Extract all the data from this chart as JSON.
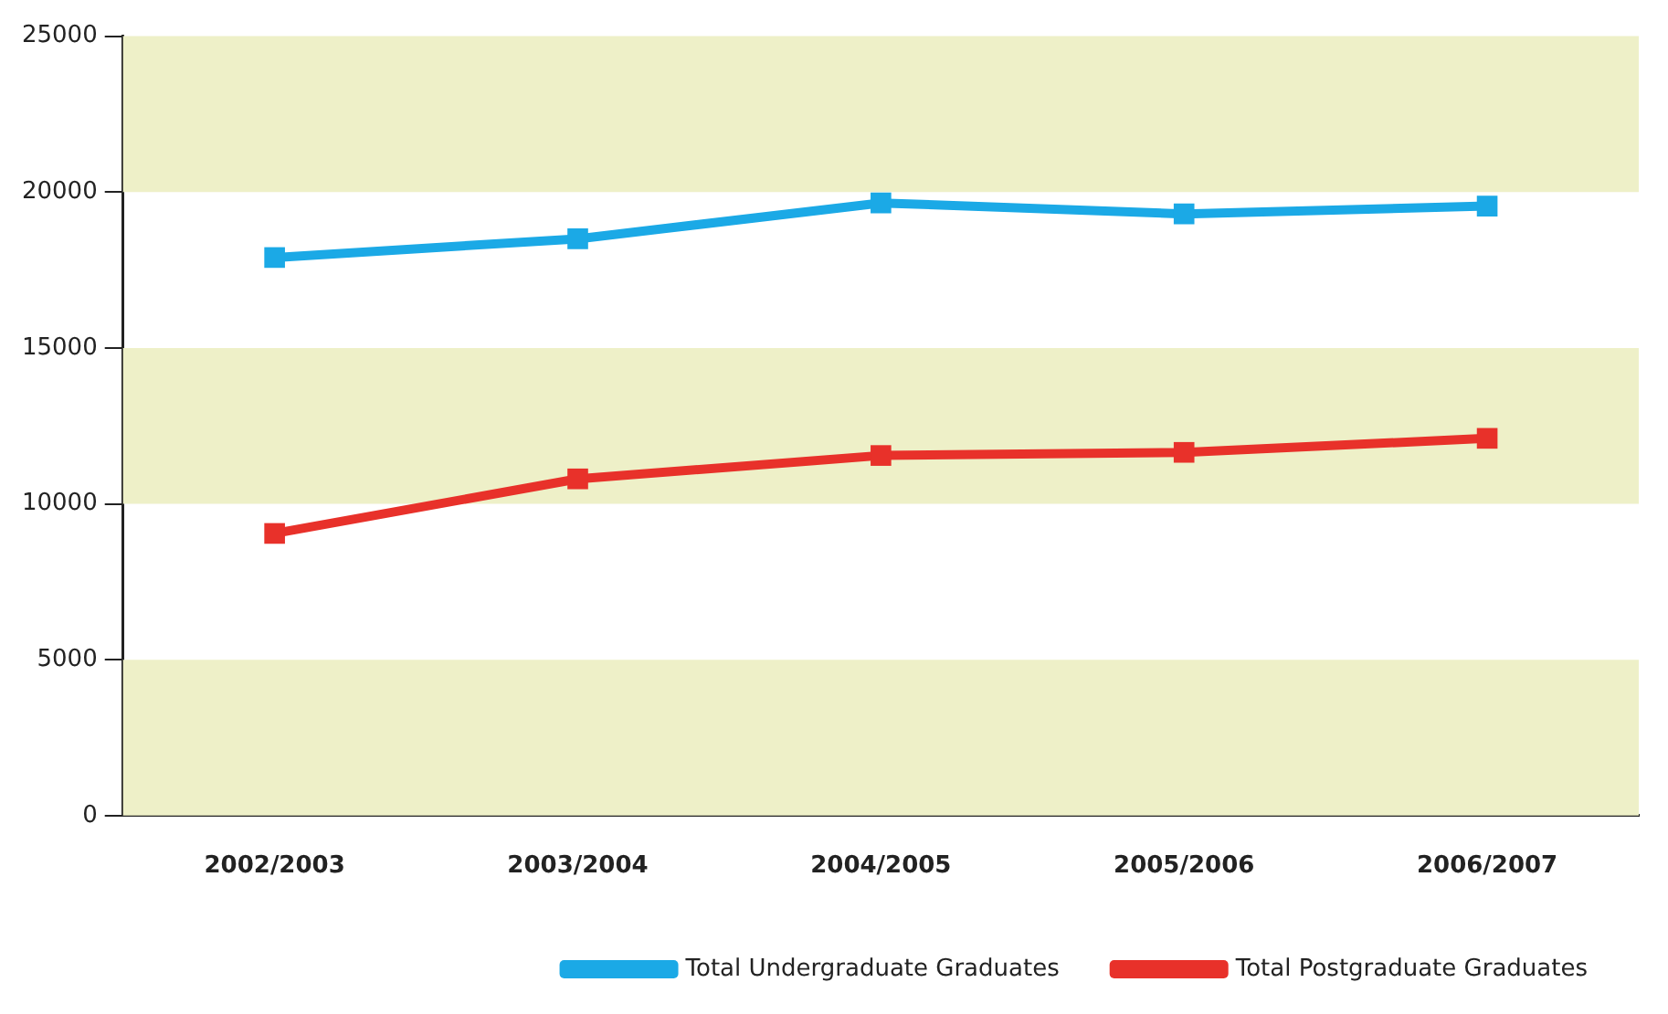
{
  "chart_data": {
    "type": "line",
    "categories": [
      "2002/2003",
      "2003/2004",
      "2004/2005",
      "2005/2006",
      "2006/2007"
    ],
    "series": [
      {
        "name": "Total Undergraduate Graduates",
        "color": "#1ba9e6",
        "values": [
          17900,
          18500,
          19650,
          19300,
          19550
        ]
      },
      {
        "name": "Total Postgraduate Graduates",
        "color": "#e8312a",
        "values": [
          9050,
          10800,
          11550,
          11650,
          12100
        ]
      }
    ],
    "ylim": [
      0,
      25000
    ],
    "yticks": [
      0,
      5000,
      10000,
      15000,
      20000,
      25000
    ],
    "bands": [
      {
        "axis": "y",
        "from": 0,
        "to": 5000,
        "color": "#eef0c8"
      },
      {
        "axis": "y",
        "from": 10000,
        "to": 15000,
        "color": "#eef0c8"
      },
      {
        "axis": "y",
        "from": 20000,
        "to": 25000,
        "color": "#eef0c8"
      }
    ],
    "grid": false,
    "legend": "bottom right",
    "marker": "square",
    "line_style": "solid"
  }
}
